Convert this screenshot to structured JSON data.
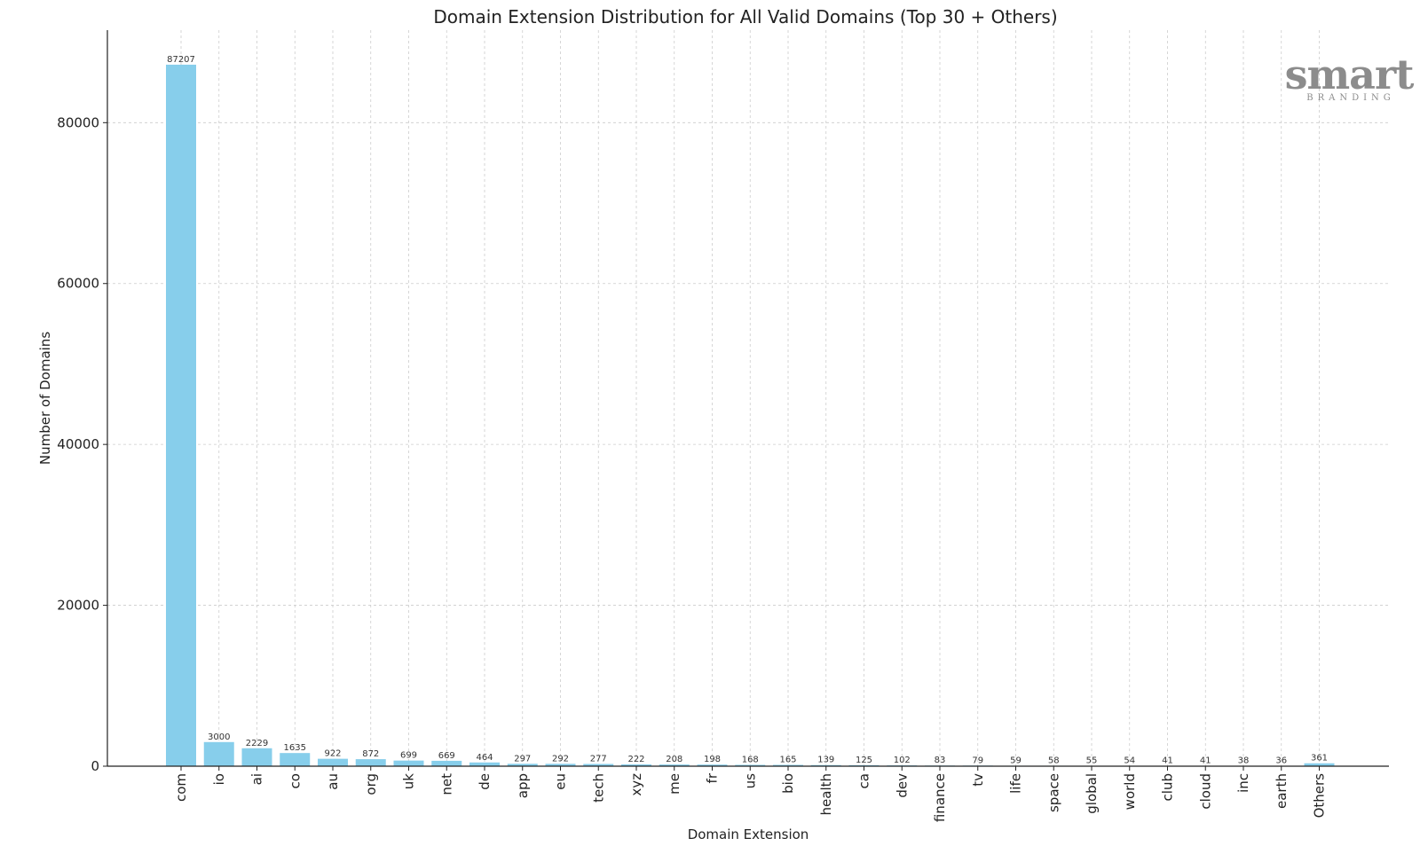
{
  "chart_data": {
    "type": "bar",
    "title": "Domain Extension Distribution for All Valid Domains (Top 30 + Others)",
    "xlabel": "Domain Extension",
    "ylabel": "Number of Domains",
    "categories": [
      "com",
      "io",
      "ai",
      "co",
      "au",
      "org",
      "uk",
      "net",
      "de",
      "app",
      "eu",
      "tech",
      "xyz",
      "me",
      "fr",
      "us",
      "bio",
      "health",
      "ca",
      "dev",
      "finance",
      "tv",
      "life",
      "space",
      "global",
      "world",
      "club",
      "cloud",
      "inc",
      "earth",
      "Others"
    ],
    "values": [
      87207,
      3000,
      2229,
      1635,
      922,
      872,
      699,
      669,
      464,
      297,
      292,
      277,
      222,
      208,
      198,
      168,
      165,
      139,
      125,
      102,
      83,
      79,
      59,
      58,
      55,
      54,
      41,
      41,
      38,
      36,
      361
    ],
    "yticks": [
      0,
      20000,
      40000,
      60000,
      80000
    ],
    "ylim": [
      0,
      91500
    ],
    "grid": true,
    "bar_color": "#87ceeb"
  },
  "watermark": {
    "main": "smart",
    "sub": "BRANDING",
    "color": "#8c8c8c"
  }
}
